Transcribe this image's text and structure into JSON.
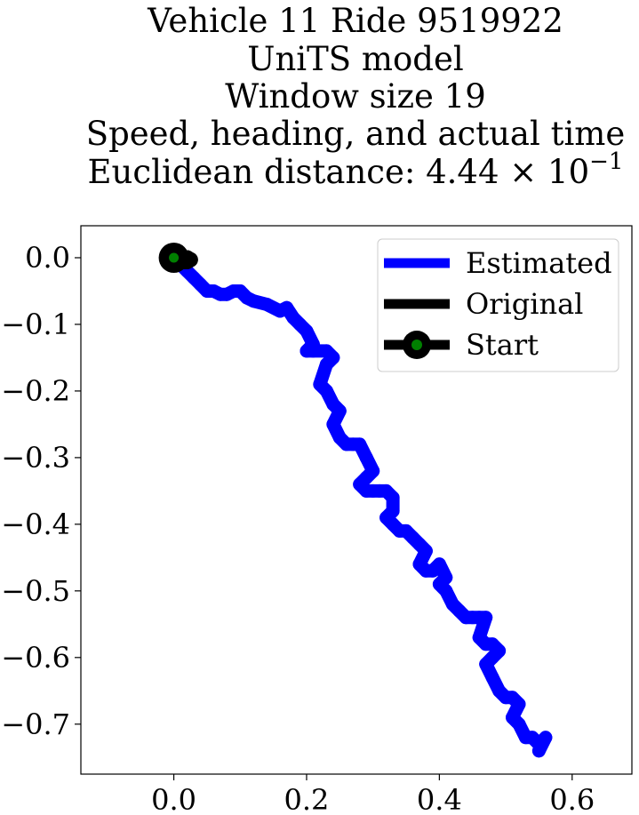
{
  "chart_data": {
    "type": "line",
    "title_lines": [
      "Vehicle 11 Ride 9519922",
      "UniTS model",
      "Window size 19",
      "Speed, heading, and actual time"
    ],
    "title_distance_prefix": "Euclidean distance: 4.44 × 10",
    "title_distance_exponent": "−1",
    "xlabel": "",
    "ylabel": "",
    "xlim": [
      -0.14,
      0.69
    ],
    "ylim": [
      -0.775,
      0.048
    ],
    "xticks": [
      0.0,
      0.2,
      0.4,
      0.6
    ],
    "xtick_labels": [
      "0.0",
      "0.2",
      "0.4",
      "0.6"
    ],
    "yticks": [
      0.0,
      -0.1,
      -0.2,
      -0.3,
      -0.4,
      -0.5,
      -0.6,
      -0.7
    ],
    "ytick_labels": [
      "0.0",
      "−0.1",
      "−0.2",
      "−0.3",
      "−0.4",
      "−0.5",
      "−0.6",
      "−0.7"
    ],
    "grid": false,
    "legend_position": "top-right",
    "series": [
      {
        "name": "Estimated",
        "color": "#0000ff",
        "x": [
          0.0,
          0.01,
          0.02,
          0.03,
          0.04,
          0.05,
          0.06,
          0.07,
          0.08,
          0.09,
          0.1,
          0.11,
          0.12,
          0.14,
          0.16,
          0.17,
          0.18,
          0.19,
          0.2,
          0.21,
          0.2,
          0.21,
          0.23,
          0.24,
          0.23,
          0.22,
          0.23,
          0.24,
          0.25,
          0.24,
          0.25,
          0.26,
          0.27,
          0.28,
          0.29,
          0.3,
          0.29,
          0.28,
          0.29,
          0.3,
          0.31,
          0.32,
          0.33,
          0.33,
          0.32,
          0.33,
          0.34,
          0.35,
          0.36,
          0.37,
          0.38,
          0.37,
          0.38,
          0.39,
          0.4,
          0.41,
          0.4,
          0.41,
          0.42,
          0.43,
          0.44,
          0.45,
          0.46,
          0.47,
          0.46,
          0.47,
          0.48,
          0.49,
          0.48,
          0.47,
          0.48,
          0.49,
          0.5,
          0.51,
          0.52,
          0.51,
          0.52,
          0.53,
          0.54,
          0.55,
          0.56,
          0.55
        ],
        "y": [
          0.0,
          -0.01,
          -0.02,
          -0.03,
          -0.04,
          -0.05,
          -0.05,
          -0.055,
          -0.055,
          -0.05,
          -0.05,
          -0.06,
          -0.065,
          -0.07,
          -0.08,
          -0.075,
          -0.09,
          -0.1,
          -0.11,
          -0.13,
          -0.14,
          -0.14,
          -0.14,
          -0.15,
          -0.16,
          -0.19,
          -0.2,
          -0.22,
          -0.23,
          -0.25,
          -0.27,
          -0.28,
          -0.28,
          -0.28,
          -0.3,
          -0.32,
          -0.33,
          -0.34,
          -0.35,
          -0.35,
          -0.35,
          -0.35,
          -0.36,
          -0.38,
          -0.39,
          -0.4,
          -0.41,
          -0.41,
          -0.42,
          -0.43,
          -0.44,
          -0.46,
          -0.47,
          -0.47,
          -0.46,
          -0.48,
          -0.49,
          -0.5,
          -0.52,
          -0.53,
          -0.54,
          -0.54,
          -0.54,
          -0.54,
          -0.57,
          -0.58,
          -0.58,
          -0.59,
          -0.6,
          -0.61,
          -0.63,
          -0.65,
          -0.66,
          -0.66,
          -0.67,
          -0.69,
          -0.7,
          -0.72,
          -0.72,
          -0.73,
          -0.72,
          -0.74
        ]
      },
      {
        "name": "Original",
        "color": "#000000",
        "x": [
          0.0,
          0.005,
          0.01,
          0.015,
          0.02,
          0.025,
          0.02,
          0.01,
          0.0
        ],
        "y": [
          0.0,
          0.0,
          -0.004,
          0.0,
          0.0,
          -0.003,
          -0.006,
          -0.006,
          -0.004
        ]
      }
    ],
    "start_point": {
      "name": "Start",
      "x": 0.0,
      "y": 0.0,
      "color": "#008000",
      "edge_color": "#000000"
    }
  }
}
